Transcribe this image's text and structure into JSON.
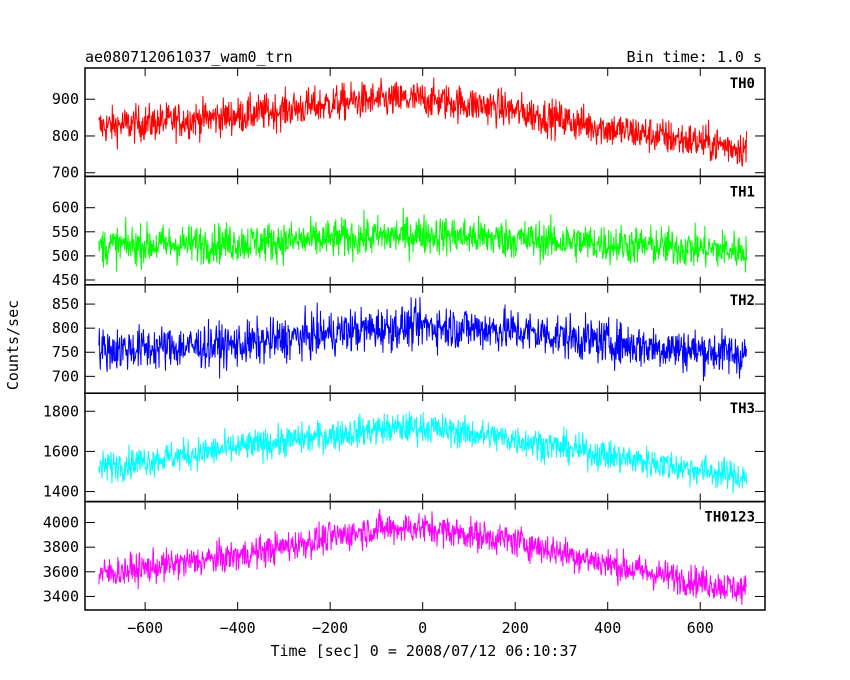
{
  "chart_data": {
    "type": "line",
    "title": "ae080712061037_wam0_trn",
    "bin_time_label": "Bin time: 1.0 s",
    "xlabel": "Time [sec] 0 = 2008/07/12 06:10:37",
    "ylabel": "Counts/sec",
    "xlim": [
      -730,
      740
    ],
    "x_ticks": [
      -600,
      -400,
      -200,
      0,
      200,
      400,
      600
    ],
    "x_tick_labels": [
      "−600",
      "−400",
      "−200",
      "0",
      "200",
      "400",
      "600"
    ],
    "x_range_data": [
      -700,
      700
    ],
    "grid": false,
    "panels": [
      {
        "name": "TH0",
        "color": "#ff0000",
        "ylim": [
          690,
          985
        ],
        "y_ticks": [
          700,
          800,
          900
        ],
        "y_tick_labels": [
          "700",
          "800",
          "900"
        ],
        "level_at_x": [
          [
            -700,
            825
          ],
          [
            -400,
            855
          ],
          [
            -150,
            895
          ],
          [
            0,
            900
          ],
          [
            150,
            880
          ],
          [
            400,
            820
          ],
          [
            700,
            765
          ]
        ],
        "scatter_amplitude": 55
      },
      {
        "name": "TH1",
        "color": "#00ff00",
        "ylim": [
          440,
          665
        ],
        "y_ticks": [
          450,
          500,
          550,
          600
        ],
        "y_tick_labels": [
          "450",
          "500",
          "550",
          "600"
        ],
        "level_at_x": [
          [
            -700,
            520
          ],
          [
            -300,
            530
          ],
          [
            0,
            545
          ],
          [
            300,
            530
          ],
          [
            700,
            510
          ]
        ],
        "scatter_amplitude": 45
      },
      {
        "name": "TH2",
        "color": "#0000ff",
        "ylim": [
          665,
          890
        ],
        "y_ticks": [
          700,
          750,
          800,
          850
        ],
        "y_tick_labels": [
          "700",
          "750",
          "800",
          "850"
        ],
        "level_at_x": [
          [
            -700,
            755
          ],
          [
            -400,
            765
          ],
          [
            -150,
            795
          ],
          [
            0,
            805
          ],
          [
            200,
            795
          ],
          [
            450,
            765
          ],
          [
            700,
            745
          ]
        ],
        "scatter_amplitude": 50
      },
      {
        "name": "TH3",
        "color": "#00ffff",
        "ylim": [
          1350,
          1890
        ],
        "y_ticks": [
          1400,
          1600,
          1800
        ],
        "y_tick_labels": [
          "1400",
          "1600",
          "1800"
        ],
        "level_at_x": [
          [
            -700,
            1520
          ],
          [
            -400,
            1620
          ],
          [
            -100,
            1710
          ],
          [
            0,
            1720
          ],
          [
            200,
            1660
          ],
          [
            450,
            1560
          ],
          [
            700,
            1470
          ]
        ],
        "scatter_amplitude": 85
      },
      {
        "name": "TH0123",
        "color": "#ff00ff",
        "ylim": [
          3290,
          4170
        ],
        "y_ticks": [
          3400,
          3600,
          3800,
          4000
        ],
        "y_tick_labels": [
          "3400",
          "3600",
          "3800",
          "4000"
        ],
        "level_at_x": [
          [
            -700,
            3580
          ],
          [
            -400,
            3730
          ],
          [
            -100,
            3950
          ],
          [
            0,
            3960
          ],
          [
            200,
            3850
          ],
          [
            450,
            3620
          ],
          [
            700,
            3450
          ]
        ],
        "scatter_amplitude": 140
      }
    ]
  }
}
